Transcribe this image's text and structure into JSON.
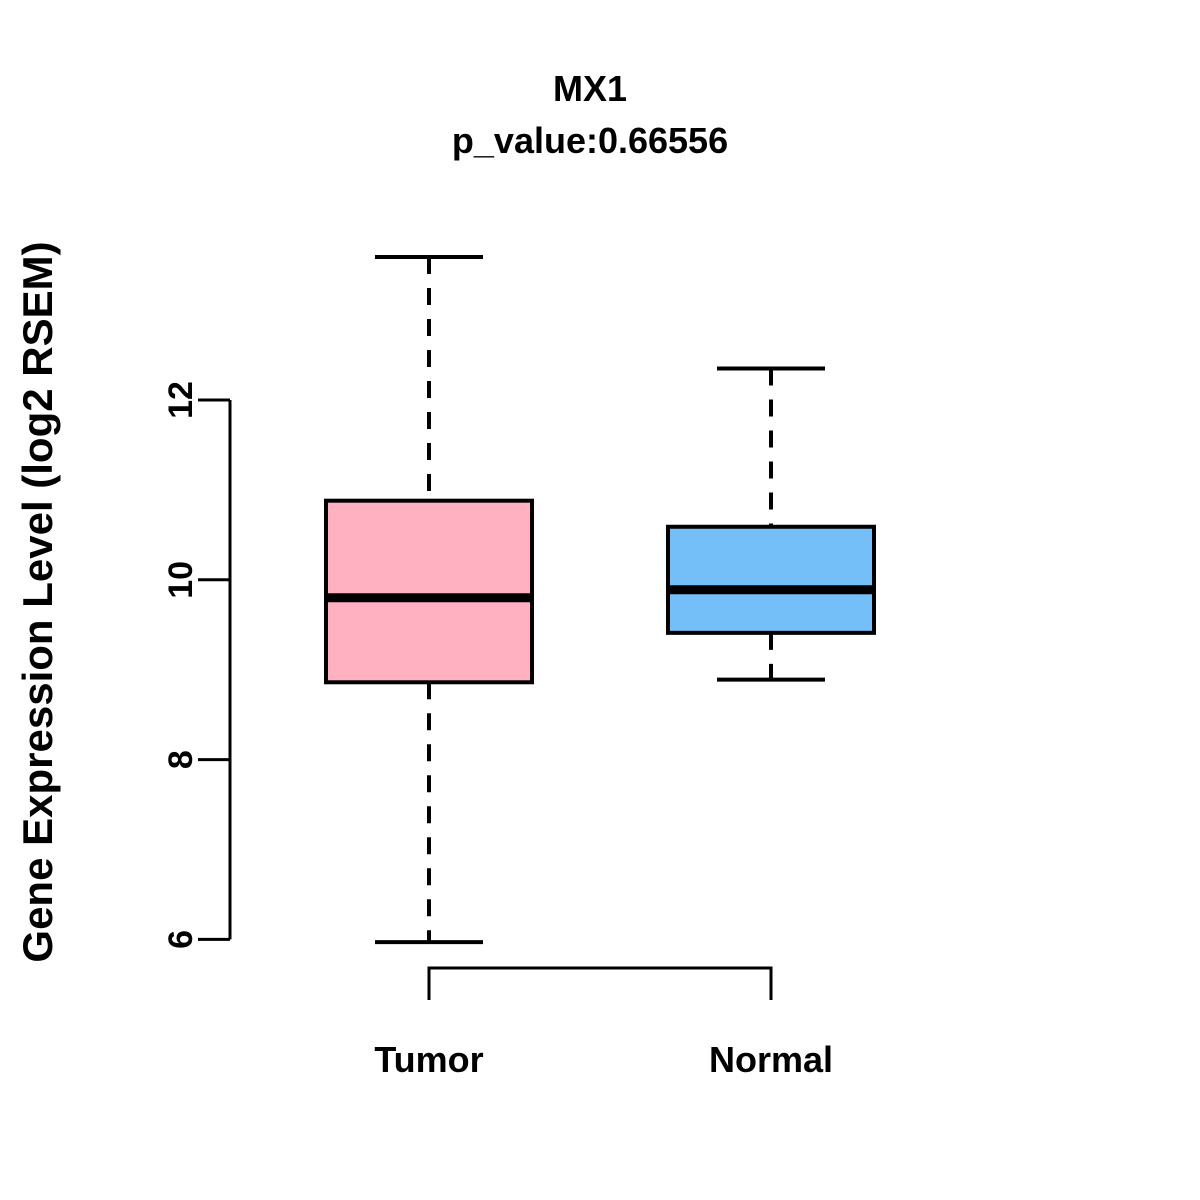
{
  "chart_data": {
    "type": "boxplot",
    "title": "MX1",
    "subtitle": "p_value:0.66556",
    "ylabel": "Gene Expression Level (log2 RSEM)",
    "xlabel": "",
    "categories": [
      "Tumor",
      "Normal"
    ],
    "series": [
      {
        "name": "Tumor",
        "fill": "#FFB0C1",
        "whisker_low": 5.97,
        "q1": 8.86,
        "median": 9.8,
        "q3": 10.88,
        "whisker_high": 13.59
      },
      {
        "name": "Normal",
        "fill": "#74BFF7",
        "whisker_low": 8.89,
        "q1": 9.41,
        "median": 9.89,
        "q3": 10.59,
        "whisker_high": 12.35
      }
    ],
    "yticks": [
      6,
      8,
      10,
      12
    ],
    "axis_range": [
      6,
      12
    ],
    "ylim": [
      5.4,
      14.1
    ],
    "grid": false,
    "legend": "none",
    "line_color": "#000000",
    "background": "#FFFFFF"
  }
}
